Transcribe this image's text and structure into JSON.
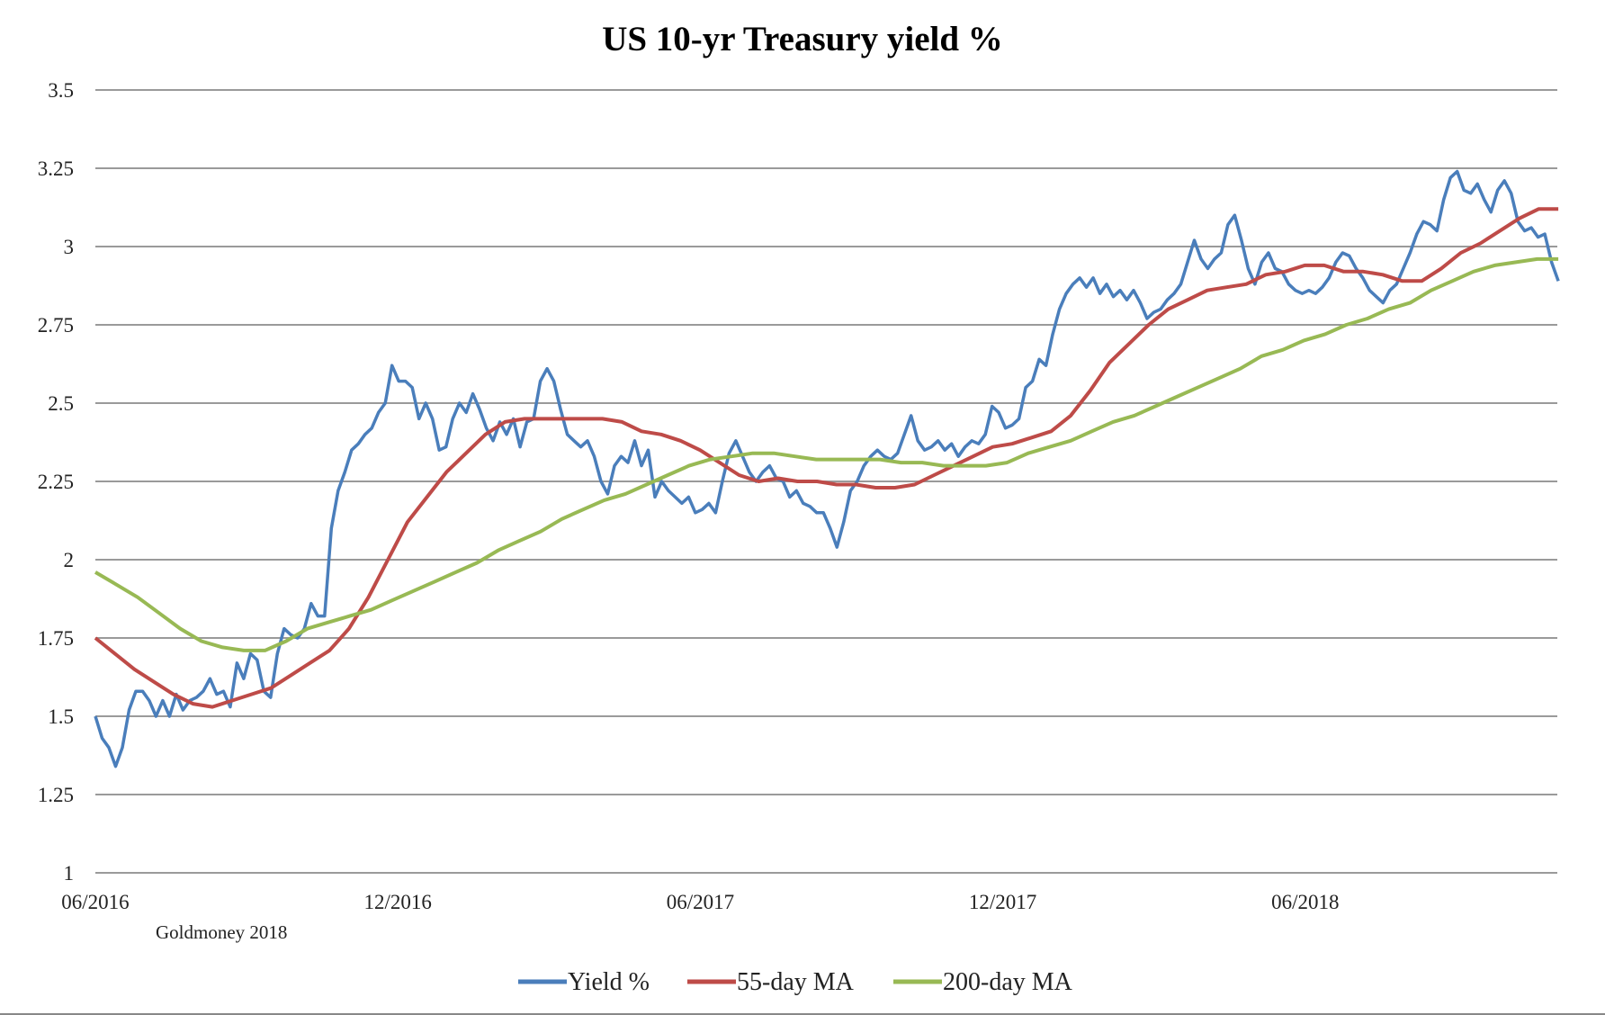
{
  "chart_data": {
    "type": "line",
    "title": "US 10-yr Treasury yield %",
    "source_note": "Goldmoney 2018",
    "xlabel": "",
    "ylabel": "",
    "ylim": [
      1,
      3.5
    ],
    "yticks": [
      1,
      1.25,
      1.5,
      1.75,
      2,
      2.25,
      2.5,
      2.75,
      3,
      3.25,
      3.5
    ],
    "ytick_labels": [
      "1",
      "1.25",
      "1.5",
      "1.75",
      "2",
      "2.25",
      "2.5",
      "2.75",
      "3",
      "3.25",
      "3.5"
    ],
    "x_unit": "months since 06/2016",
    "xlim": [
      0,
      29
    ],
    "xticks": [
      0,
      6,
      12,
      18,
      24
    ],
    "xtick_labels": [
      "06/2016",
      "12/2016",
      "06/2017",
      "12/2017",
      "06/2018"
    ],
    "grid": true,
    "legend_position": "bottom-center",
    "series": [
      {
        "name": "Yield %",
        "color": "#4a7ebb",
        "values": [
          1.5,
          1.43,
          1.4,
          1.34,
          1.4,
          1.52,
          1.58,
          1.58,
          1.55,
          1.5,
          1.55,
          1.5,
          1.57,
          1.52,
          1.55,
          1.56,
          1.58,
          1.62,
          1.57,
          1.58,
          1.53,
          1.67,
          1.62,
          1.7,
          1.68,
          1.58,
          1.56,
          1.7,
          1.78,
          1.76,
          1.75,
          1.78,
          1.86,
          1.82,
          1.82,
          2.1,
          2.22,
          2.28,
          2.35,
          2.37,
          2.4,
          2.42,
          2.47,
          2.5,
          2.62,
          2.57,
          2.57,
          2.55,
          2.45,
          2.5,
          2.45,
          2.35,
          2.36,
          2.45,
          2.5,
          2.47,
          2.53,
          2.48,
          2.42,
          2.38,
          2.44,
          2.4,
          2.45,
          2.36,
          2.44,
          2.45,
          2.57,
          2.61,
          2.57,
          2.48,
          2.4,
          2.38,
          2.36,
          2.38,
          2.33,
          2.25,
          2.21,
          2.3,
          2.33,
          2.31,
          2.38,
          2.3,
          2.35,
          2.2,
          2.25,
          2.22,
          2.2,
          2.18,
          2.2,
          2.15,
          2.16,
          2.18,
          2.15,
          2.25,
          2.34,
          2.38,
          2.33,
          2.28,
          2.25,
          2.28,
          2.3,
          2.26,
          2.25,
          2.2,
          2.22,
          2.18,
          2.17,
          2.15,
          2.15,
          2.1,
          2.04,
          2.12,
          2.22,
          2.25,
          2.3,
          2.33,
          2.35,
          2.33,
          2.32,
          2.34,
          2.4,
          2.46,
          2.38,
          2.35,
          2.36,
          2.38,
          2.35,
          2.37,
          2.33,
          2.36,
          2.38,
          2.37,
          2.4,
          2.49,
          2.47,
          2.42,
          2.43,
          2.45,
          2.55,
          2.57,
          2.64,
          2.62,
          2.72,
          2.8,
          2.85,
          2.88,
          2.9,
          2.87,
          2.9,
          2.85,
          2.88,
          2.84,
          2.86,
          2.83,
          2.86,
          2.82,
          2.77,
          2.79,
          2.8,
          2.83,
          2.85,
          2.88,
          2.95,
          3.02,
          2.96,
          2.93,
          2.96,
          2.98,
          3.07,
          3.1,
          3.02,
          2.93,
          2.88,
          2.95,
          2.98,
          2.93,
          2.92,
          2.88,
          2.86,
          2.85,
          2.86,
          2.85,
          2.87,
          2.9,
          2.95,
          2.98,
          2.97,
          2.93,
          2.9,
          2.86,
          2.84,
          2.82,
          2.86,
          2.88,
          2.93,
          2.98,
          3.04,
          3.08,
          3.07,
          3.05,
          3.15,
          3.22,
          3.24,
          3.18,
          3.17,
          3.2,
          3.15,
          3.11,
          3.18,
          3.21,
          3.17,
          3.08,
          3.05,
          3.06,
          3.03,
          3.04,
          2.95,
          2.89
        ]
      },
      {
        "name": "55-day MA",
        "color": "#be4b48",
        "values": [
          1.75,
          1.7,
          1.65,
          1.61,
          1.57,
          1.54,
          1.53,
          1.55,
          1.57,
          1.59,
          1.63,
          1.67,
          1.71,
          1.78,
          1.88,
          2.0,
          2.12,
          2.2,
          2.28,
          2.34,
          2.4,
          2.44,
          2.45,
          2.45,
          2.45,
          2.45,
          2.45,
          2.44,
          2.41,
          2.4,
          2.38,
          2.35,
          2.31,
          2.27,
          2.25,
          2.26,
          2.25,
          2.25,
          2.24,
          2.24,
          2.23,
          2.23,
          2.24,
          2.27,
          2.3,
          2.33,
          2.36,
          2.37,
          2.39,
          2.41,
          2.46,
          2.54,
          2.63,
          2.69,
          2.75,
          2.8,
          2.83,
          2.86,
          2.87,
          2.88,
          2.91,
          2.92,
          2.94,
          2.94,
          2.92,
          2.92,
          2.91,
          2.89,
          2.89,
          2.93,
          2.98,
          3.01,
          3.05,
          3.09,
          3.12,
          3.12
        ]
      },
      {
        "name": "200-day MA",
        "color": "#98b954",
        "values": [
          1.96,
          1.92,
          1.88,
          1.83,
          1.78,
          1.74,
          1.72,
          1.71,
          1.71,
          1.74,
          1.78,
          1.8,
          1.82,
          1.84,
          1.87,
          1.9,
          1.93,
          1.96,
          1.99,
          2.03,
          2.06,
          2.09,
          2.13,
          2.16,
          2.19,
          2.21,
          2.24,
          2.27,
          2.3,
          2.32,
          2.33,
          2.34,
          2.34,
          2.33,
          2.32,
          2.32,
          2.32,
          2.32,
          2.31,
          2.31,
          2.3,
          2.3,
          2.3,
          2.31,
          2.34,
          2.36,
          2.38,
          2.41,
          2.44,
          2.46,
          2.49,
          2.52,
          2.55,
          2.58,
          2.61,
          2.65,
          2.67,
          2.7,
          2.72,
          2.75,
          2.77,
          2.8,
          2.82,
          2.86,
          2.89,
          2.92,
          2.94,
          2.95,
          2.96,
          2.96
        ]
      }
    ]
  }
}
